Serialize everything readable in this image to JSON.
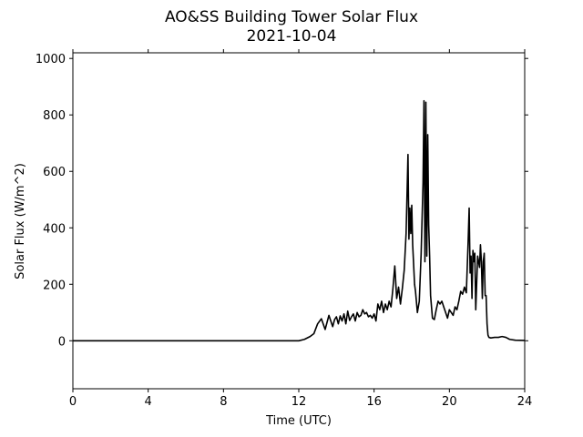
{
  "chart_data": {
    "type": "line",
    "title": "AO&SS Building Tower Solar Flux",
    "subtitle": "2021-10-04",
    "xlabel": "Time (UTC)",
    "ylabel": "Solar Flux (W/m^2)",
    "xlim": [
      0,
      24
    ],
    "ylim": [
      -170,
      1020
    ],
    "xticks": [
      0,
      4,
      8,
      12,
      16,
      20,
      24
    ],
    "yticks": [
      0,
      200,
      400,
      600,
      800,
      1000
    ],
    "grid": false,
    "line_color": "#000000",
    "series": [
      {
        "x": [
          0,
          12.0,
          12.3,
          12.6,
          12.8,
          13.0,
          13.2,
          13.4,
          13.5,
          13.6,
          13.8,
          13.9,
          14.0,
          14.1,
          14.2,
          14.3,
          14.4,
          14.5,
          14.6,
          14.7,
          14.8,
          14.9,
          15.0,
          15.1,
          15.2,
          15.3,
          15.4,
          15.5,
          15.6,
          15.7,
          15.8,
          15.9,
          16.0,
          16.1,
          16.2,
          16.3,
          16.4,
          16.5,
          16.6,
          16.7,
          16.8,
          16.9,
          17.0,
          17.1,
          17.2,
          17.3,
          17.4,
          17.5,
          17.6,
          17.7,
          17.8,
          17.85,
          17.9,
          17.95,
          18.0,
          18.05,
          18.1,
          18.15,
          18.2,
          18.3,
          18.4,
          18.5,
          18.6,
          18.65,
          18.7,
          18.75,
          18.8,
          18.85,
          18.9,
          18.95,
          19.0,
          19.1,
          19.2,
          19.3,
          19.4,
          19.5,
          19.6,
          19.7,
          19.8,
          19.9,
          20.0,
          20.1,
          20.2,
          20.3,
          20.4,
          20.5,
          20.6,
          20.7,
          20.8,
          20.9,
          21.0,
          21.05,
          21.1,
          21.15,
          21.2,
          21.25,
          21.3,
          21.35,
          21.4,
          21.5,
          21.6,
          21.65,
          21.7,
          21.75,
          21.8,
          21.85,
          21.9,
          21.95,
          22.0,
          22.05,
          22.1,
          22.2,
          22.4,
          22.6,
          22.8,
          23.0,
          23.2,
          23.5,
          24.0
        ],
        "y": [
          0,
          0,
          5,
          15,
          25,
          60,
          78,
          40,
          65,
          90,
          50,
          75,
          85,
          60,
          88,
          70,
          95,
          60,
          105,
          72,
          85,
          95,
          70,
          100,
          85,
          90,
          110,
          95,
          100,
          85,
          90,
          80,
          95,
          70,
          130,
          110,
          140,
          100,
          130,
          110,
          140,
          120,
          185,
          265,
          150,
          190,
          130,
          185,
          250,
          380,
          660,
          360,
          470,
          380,
          480,
          340,
          270,
          200,
          175,
          100,
          140,
          310,
          560,
          850,
          280,
          845,
          300,
          730,
          410,
          300,
          160,
          80,
          75,
          110,
          140,
          130,
          140,
          120,
          100,
          80,
          110,
          100,
          90,
          120,
          110,
          140,
          175,
          165,
          190,
          170,
          360,
          470,
          240,
          300,
          150,
          320,
          280,
          310,
          110,
          300,
          260,
          340,
          280,
          150,
          280,
          310,
          160,
          160,
          60,
          20,
          12,
          10,
          12,
          12,
          15,
          12,
          5,
          2,
          1
        ]
      }
    ]
  }
}
